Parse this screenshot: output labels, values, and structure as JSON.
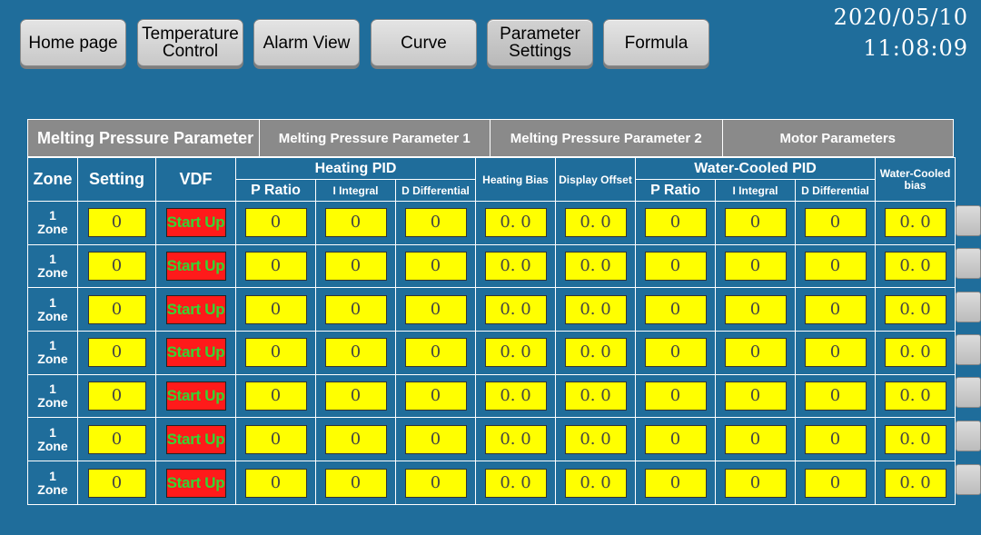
{
  "nav": [
    {
      "label": "Home page"
    },
    {
      "label": "Temperature Control"
    },
    {
      "label": "Alarm View"
    },
    {
      "label": "Curve"
    },
    {
      "label": "Parameter Settings"
    },
    {
      "label": "Formula"
    }
  ],
  "clock": {
    "date": "2020/05/10",
    "time": "11:08:09"
  },
  "tabs": [
    {
      "label": "Melting Pressure Parameter"
    },
    {
      "label": "Melting Pressure Parameter 1"
    },
    {
      "label": "Melting Pressure Parameter 2"
    },
    {
      "label": "Motor Parameters"
    }
  ],
  "headers": {
    "zone": "Zone",
    "setting": "Setting",
    "vdf": "VDF",
    "heating_pid": "Heating PID",
    "heating_bias": "Heating Bias",
    "display_offset": "Display Offset",
    "water_pid": "Water-Cooled PID",
    "water_bias_1": "Water-Cooled",
    "water_bias_2": "bias",
    "p_ratio": "P Ratio",
    "i_integral": "I Integral",
    "d_differential": "D Differential",
    "p_ratio_2": "P Ratio",
    "i_integral_2": "I Integral",
    "d_differential_2": "D Differential"
  },
  "rows": [
    {
      "zone_num": "1",
      "zone_label": "Zone",
      "setting": "0",
      "vdf": "Start Up",
      "hp": "0",
      "hi": "0",
      "hd": "0",
      "hbias": "0. 0",
      "doffset": "0. 0",
      "wp": "0",
      "wi": "0",
      "wd": "0",
      "wbias": "0. 0"
    },
    {
      "zone_num": "1",
      "zone_label": "Zone",
      "setting": "0",
      "vdf": "Start Up",
      "hp": "0",
      "hi": "0",
      "hd": "0",
      "hbias": "0. 0",
      "doffset": "0. 0",
      "wp": "0",
      "wi": "0",
      "wd": "0",
      "wbias": "0. 0"
    },
    {
      "zone_num": "1",
      "zone_label": "Zone",
      "setting": "0",
      "vdf": "Start Up",
      "hp": "0",
      "hi": "0",
      "hd": "0",
      "hbias": "0. 0",
      "doffset": "0. 0",
      "wp": "0",
      "wi": "0",
      "wd": "0",
      "wbias": "0. 0"
    },
    {
      "zone_num": "1",
      "zone_label": "Zone",
      "setting": "0",
      "vdf": "Start Up",
      "hp": "0",
      "hi": "0",
      "hd": "0",
      "hbias": "0. 0",
      "doffset": "0. 0",
      "wp": "0",
      "wi": "0",
      "wd": "0",
      "wbias": "0. 0"
    },
    {
      "zone_num": "1",
      "zone_label": "Zone",
      "setting": "0",
      "vdf": "Start Up",
      "hp": "0",
      "hi": "0",
      "hd": "0",
      "hbias": "0. 0",
      "doffset": "0. 0",
      "wp": "0",
      "wi": "0",
      "wd": "0",
      "wbias": "0. 0"
    },
    {
      "zone_num": "1",
      "zone_label": "Zone",
      "setting": "0",
      "vdf": "Start Up",
      "hp": "0",
      "hi": "0",
      "hd": "0",
      "hbias": "0. 0",
      "doffset": "0. 0",
      "wp": "0",
      "wi": "0",
      "wd": "0",
      "wbias": "0. 0"
    },
    {
      "zone_num": "1",
      "zone_label": "Zone",
      "setting": "0",
      "vdf": "Start Up",
      "hp": "0",
      "hi": "0",
      "hd": "0",
      "hbias": "0. 0",
      "doffset": "0. 0",
      "wp": "0",
      "wi": "0",
      "wd": "0",
      "wbias": "0. 0"
    }
  ],
  "colors": {
    "background": "#1f6d9b",
    "input_fill": "#ffff00",
    "vdf_button": "#ff1a1a",
    "vdf_text": "#33d633",
    "tab_fill": "#8a8a8a"
  }
}
